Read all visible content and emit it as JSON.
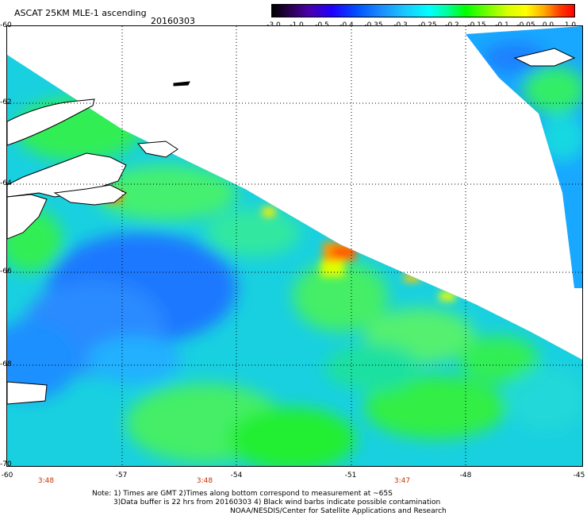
{
  "header": {
    "title": "ASCAT 25KM MLE-1 ascending",
    "date": "20160303"
  },
  "colorbar": {
    "ticks": [
      "-3.0",
      "-1.0",
      "-0.5",
      "-0.4",
      "-0.35",
      "-0.3",
      "-0.25",
      "-0.2",
      "-0.15",
      "-0.1",
      "-0.05",
      "0.0",
      "1.0"
    ]
  },
  "map": {
    "lat_labels": [
      "-60",
      "-62",
      "-64",
      "-66",
      "-68",
      "-70"
    ],
    "lon_labels": [
      "-60",
      "-57",
      "-54",
      "-51",
      "-48",
      "-45"
    ],
    "times": [
      "3:48",
      "3:48",
      "3:47"
    ],
    "colors": {
      "swath_main": "#19c8e8",
      "swath_blue": "#1a78ff",
      "green": "#22ee44",
      "yellow": "#f0ff00",
      "orange": "#ff8800",
      "red": "#ff3300",
      "coast": "#000000",
      "grid": "#000000"
    }
  },
  "footer": {
    "note_line1": "Note: 1) Times are GMT 2)Times along bottom correspond to measurement at ~65S",
    "note_line2": "3)Data buffer is 22 hrs from 20160303 4) Black wind barbs indicate possible contamination",
    "credit": "NOAA/NESDIS/Center for Satellite Applications and Research"
  }
}
